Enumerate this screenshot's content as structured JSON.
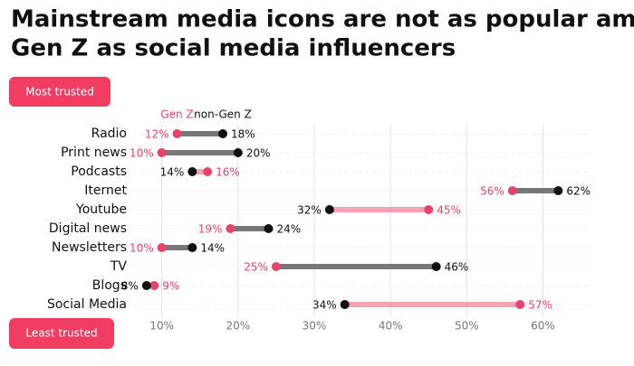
{
  "chart_data": {
    "type": "dumbbell",
    "title": [
      "Mainstream media icons are not as popular among",
      "Gen Z as social media influencers"
    ],
    "top_label": "Most trusted",
    "bottom_label": "Least trusted",
    "categories": [
      "Radio",
      "Print news",
      "Podcasts",
      "Iternet",
      "Youtube",
      "Digital news",
      "Newsletters",
      "TV",
      "Blogs",
      "Social Media"
    ],
    "series": [
      {
        "name": "Gen Z",
        "color": "#e8436a",
        "values": [
          12,
          10,
          16,
          56,
          45,
          19,
          10,
          25,
          9,
          57
        ],
        "value_labels": [
          "12%",
          "10%",
          "16%",
          "56%",
          "45%",
          "19%",
          "10%",
          "25%",
          "9%",
          "57%"
        ]
      },
      {
        "name": "non-Gen Z",
        "color": "#111111",
        "values": [
          18,
          20,
          14,
          62,
          32,
          24,
          14,
          46,
          8,
          34
        ],
        "value_labels": [
          "18%",
          "20%",
          "14%",
          "62%",
          "32%",
          "24%",
          "14%",
          "46%",
          "8%",
          "34%"
        ]
      }
    ],
    "connector_colors": {
      "up": "#777777",
      "down": "#f4a3b5"
    },
    "xlim": [
      6,
      66
    ],
    "xticks": [
      {
        "value": 10,
        "label": "10%"
      },
      {
        "value": 20,
        "label": "20%"
      },
      {
        "value": 30,
        "label": "30%"
      },
      {
        "value": 40,
        "label": "40%"
      },
      {
        "value": 50,
        "label": "50%"
      },
      {
        "value": 60,
        "label": "60%"
      }
    ],
    "grid": true
  }
}
